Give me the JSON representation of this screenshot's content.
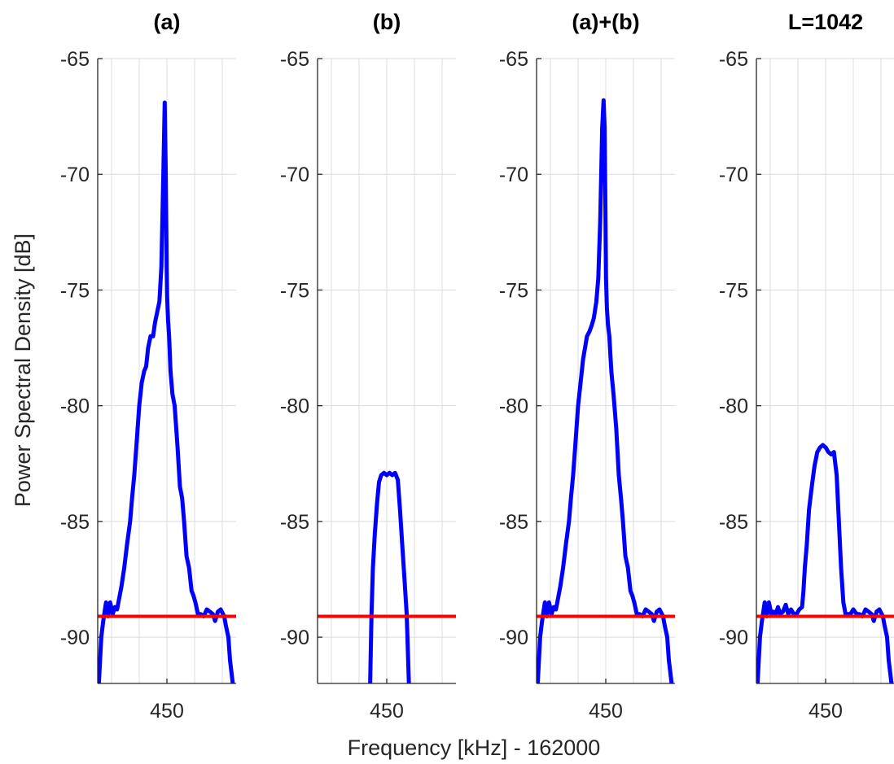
{
  "figure": {
    "xlabel": "Frequency [kHz] - 162000",
    "ylabel": "Power Spectral Density [dB]"
  },
  "chart_data": [
    {
      "type": "line",
      "title": "(a)",
      "ylim": [
        -92,
        -65
      ],
      "xlim": [
        425,
        475
      ],
      "xticks": [
        450
      ],
      "yticks": [
        -90,
        -85,
        -80,
        -75,
        -70,
        -65
      ],
      "grid": true,
      "series": [
        {
          "color": "#0000ff",
          "x": [
            425.4,
            426.3,
            427.0,
            428.0,
            428.7,
            429.5,
            430.4,
            431.2,
            432.0,
            432.8,
            433.6,
            434.6,
            435.6,
            436.7,
            437.4,
            438.2,
            439.0,
            440.0,
            440.9,
            441.8,
            442.5,
            443.2,
            444.1,
            445.0,
            445.7,
            446.6,
            447.3,
            448.0,
            448.7,
            449.2,
            449.6,
            449.9,
            450.1,
            450.4,
            450.8,
            451.3,
            452.0,
            452.8,
            453.8,
            454.7,
            455.5,
            456.2,
            457.1,
            458.0,
            458.9,
            459.6,
            460.3,
            461.2,
            462.2,
            463.3,
            464.4,
            465.5,
            466.6,
            467.4,
            468.4,
            469.4,
            470.7,
            471.3,
            472.2,
            472.8,
            473.8
          ],
          "y": [
            -92.0,
            -90.0,
            -89.3,
            -88.5,
            -89.1,
            -88.5,
            -89.0,
            -88.7,
            -88.8,
            -88.3,
            -87.8,
            -87.0,
            -86.0,
            -85.0,
            -84.0,
            -83.0,
            -81.7,
            -80.0,
            -79.0,
            -78.5,
            -78.3,
            -77.5,
            -77.0,
            -77.0,
            -76.4,
            -75.9,
            -75.5,
            -74.0,
            -70.0,
            -66.9,
            -70.0,
            -74.0,
            -75.3,
            -76.3,
            -77.0,
            -78.5,
            -79.5,
            -80.0,
            -81.7,
            -83.5,
            -84.0,
            -85.0,
            -86.5,
            -87.0,
            -88.0,
            -88.2,
            -88.5,
            -89.0,
            -89.0,
            -89.1,
            -88.8,
            -88.9,
            -89.0,
            -89.3,
            -88.9,
            -88.8,
            -89.1,
            -89.5,
            -90.0,
            -91.0,
            -92.0
          ]
        },
        {
          "color": "#ff0000",
          "x": [
            425,
            475
          ],
          "y": [
            -89.1,
            -89.1
          ]
        }
      ]
    },
    {
      "type": "line",
      "title": "(b)",
      "ylim": [
        -92,
        -65
      ],
      "xlim": [
        425,
        475
      ],
      "xticks": [
        450
      ],
      "yticks": [
        -90,
        -85,
        -80,
        -75,
        -70,
        -65
      ],
      "grid": true,
      "series": [
        {
          "color": "#0000ff",
          "x": [
            444.0,
            444.5,
            445.0,
            445.7,
            446.5,
            447.2,
            448.0,
            449.0,
            450.0,
            451.0,
            452.0,
            453.0,
            454.0,
            454.8,
            455.6,
            456.4,
            457.2,
            458.0
          ],
          "y": [
            -92.0,
            -89.0,
            -87.0,
            -85.5,
            -84.2,
            -83.3,
            -83.0,
            -82.9,
            -83.0,
            -82.9,
            -83.0,
            -82.9,
            -83.2,
            -84.5,
            -86.0,
            -87.5,
            -89.0,
            -92.0
          ]
        },
        {
          "color": "#ff0000",
          "x": [
            425,
            475
          ],
          "y": [
            -89.1,
            -89.1
          ]
        }
      ]
    },
    {
      "type": "line",
      "title": "(a)+(b)",
      "ylim": [
        -92,
        -65
      ],
      "xlim": [
        425,
        475
      ],
      "xticks": [
        450
      ],
      "yticks": [
        -90,
        -85,
        -80,
        -75,
        -70,
        -65
      ],
      "grid": true,
      "series": [
        {
          "color": "#0000ff",
          "x": [
            425.4,
            426.3,
            427.0,
            428.0,
            428.7,
            429.5,
            430.4,
            431.2,
            432.0,
            432.8,
            433.6,
            434.6,
            435.6,
            436.7,
            437.4,
            438.2,
            439.0,
            440.0,
            440.9,
            441.8,
            442.5,
            443.2,
            444.1,
            445.0,
            445.7,
            446.6,
            447.3,
            448.0,
            448.7,
            449.2,
            449.6,
            449.9,
            450.1,
            450.4,
            450.8,
            451.3,
            452.0,
            452.8,
            453.8,
            454.7,
            455.5,
            456.2,
            457.1,
            458.0,
            458.9,
            459.6,
            460.3,
            461.2,
            462.2,
            463.3,
            464.4,
            465.5,
            466.6,
            467.4,
            468.4,
            469.4,
            470.7,
            471.3,
            472.2,
            472.8,
            473.8
          ],
          "y": [
            -92.0,
            -90.0,
            -89.3,
            -88.5,
            -89.1,
            -88.5,
            -89.0,
            -88.7,
            -88.8,
            -88.3,
            -87.8,
            -87.0,
            -86.0,
            -85.0,
            -84.0,
            -83.0,
            -81.7,
            -80.0,
            -79.0,
            -78.0,
            -77.5,
            -77.0,
            -76.8,
            -76.5,
            -76.2,
            -75.5,
            -74.5,
            -72.0,
            -68.0,
            -66.8,
            -68.0,
            -72.0,
            -74.5,
            -75.8,
            -76.5,
            -77.0,
            -78.5,
            -79.5,
            -81.0,
            -83.0,
            -84.0,
            -85.0,
            -86.5,
            -87.0,
            -88.0,
            -88.2,
            -88.5,
            -89.0,
            -89.0,
            -89.1,
            -88.8,
            -88.9,
            -89.0,
            -89.3,
            -88.9,
            -88.8,
            -89.1,
            -89.5,
            -90.0,
            -91.0,
            -92.0
          ]
        },
        {
          "color": "#ff0000",
          "x": [
            425,
            475
          ],
          "y": [
            -89.1,
            -89.1
          ]
        }
      ]
    },
    {
      "type": "line",
      "title": "L=1042",
      "ylim": [
        -92,
        -65
      ],
      "xlim": [
        425,
        475
      ],
      "xticks": [
        450
      ],
      "yticks": [
        -90,
        -85,
        -80,
        -75,
        -70,
        -65
      ],
      "grid": true,
      "series": [
        {
          "color": "#0000ff",
          "x": [
            425.4,
            426.3,
            427.0,
            428.0,
            428.7,
            429.5,
            430.4,
            431.2,
            432.0,
            432.8,
            433.6,
            434.6,
            435.6,
            436.5,
            437.5,
            438.5,
            439.5,
            440.5,
            441.5,
            442.0,
            442.5,
            443.2,
            444.0,
            445.0,
            446.0,
            447.0,
            448.0,
            449.0,
            450.0,
            451.0,
            452.0,
            453.0,
            453.5,
            454.0,
            454.8,
            455.6,
            456.4,
            457.2,
            458.0,
            459.0,
            460.0,
            461.2,
            462.2,
            463.3,
            464.4,
            465.5,
            466.6,
            467.4,
            468.4,
            469.4,
            470.7,
            471.3,
            472.2,
            472.8,
            473.8
          ],
          "y": [
            -92.0,
            -90.0,
            -89.3,
            -88.5,
            -89.1,
            -88.5,
            -89.0,
            -88.9,
            -89.0,
            -88.7,
            -89.0,
            -88.9,
            -88.6,
            -89.0,
            -88.8,
            -89.0,
            -89.0,
            -88.8,
            -88.7,
            -88.0,
            -87.0,
            -86.0,
            -84.5,
            -83.5,
            -82.6,
            -82.0,
            -81.8,
            -81.7,
            -81.8,
            -82.0,
            -82.1,
            -82.0,
            -82.5,
            -83.0,
            -85.0,
            -87.0,
            -88.5,
            -89.0,
            -89.0,
            -89.0,
            -88.8,
            -89.0,
            -89.0,
            -89.1,
            -88.8,
            -88.9,
            -89.0,
            -89.3,
            -88.9,
            -88.8,
            -89.1,
            -89.5,
            -90.0,
            -91.0,
            -92.0
          ]
        },
        {
          "color": "#ff0000",
          "x": [
            425,
            475
          ],
          "y": [
            -89.1,
            -89.1
          ]
        }
      ]
    }
  ]
}
